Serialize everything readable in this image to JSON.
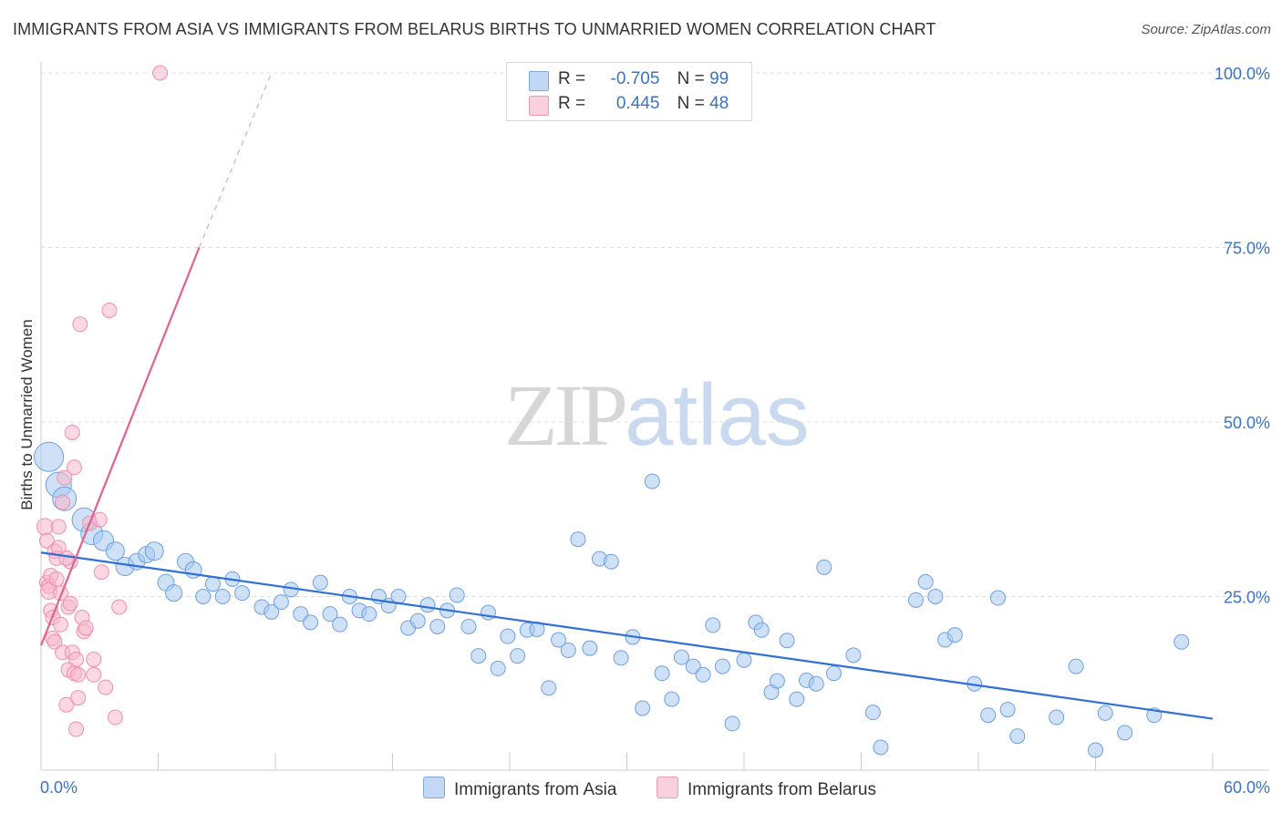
{
  "header": {
    "title": "IMMIGRANTS FROM ASIA VS IMMIGRANTS FROM BELARUS BIRTHS TO UNMARRIED WOMEN CORRELATION CHART",
    "source": "Source: ZipAtlas.com"
  },
  "watermark": {
    "zip": "ZIP",
    "atlas": "atlas"
  },
  "legend": {
    "rows": [
      {
        "r_label": "R =",
        "r_value": "-0.705",
        "n_label": "N =",
        "n_value": "99",
        "color": "#a8c8f0"
      },
      {
        "r_label": "R =",
        "r_value": "0.445",
        "n_label": "N =",
        "n_value": "48",
        "color": "#f7b8cb"
      }
    ]
  },
  "bottom_legend": [
    {
      "label": "Immigrants from Asia",
      "color": "#a8c8f0"
    },
    {
      "label": "Immigrants from Belarus",
      "color": "#f7b8cb"
    }
  ],
  "chart_data": {
    "type": "scatter",
    "title": "IMMIGRANTS FROM ASIA VS IMMIGRANTS FROM BELARUS BIRTHS TO UNMARRIED WOMEN CORRELATION CHART",
    "xlabel": "",
    "ylabel": "Births to Unmarried Women",
    "xlim": [
      0,
      60
    ],
    "ylim": [
      0,
      100
    ],
    "x_tick_labels": [
      "0.0%",
      "60.0%"
    ],
    "y_tick_labels": [
      "25.0%",
      "50.0%",
      "75.0%",
      "100.0%"
    ],
    "y_ticks": [
      25,
      50,
      75,
      100
    ],
    "grid": true,
    "legend_position": "top-center",
    "series": [
      {
        "name": "Immigrants from Asia",
        "color": "#6fa0e0",
        "fill": "#a8c8f0",
        "trend": {
          "x": [
            0,
            60
          ],
          "y": [
            31.3,
            7.5
          ]
        },
        "points": [
          [
            0.4,
            45.0,
            16
          ],
          [
            0.9,
            41.0,
            14
          ],
          [
            1.2,
            39.0,
            13
          ],
          [
            2.2,
            36.0,
            13
          ],
          [
            2.6,
            34.0,
            12
          ],
          [
            3.2,
            33.0,
            11
          ],
          [
            3.8,
            31.5,
            10
          ],
          [
            4.3,
            29.3,
            10
          ],
          [
            4.9,
            30.0,
            9
          ],
          [
            5.4,
            31.0,
            9
          ],
          [
            5.8,
            31.5,
            10
          ],
          [
            6.4,
            27.0,
            9
          ],
          [
            6.8,
            25.5,
            9
          ],
          [
            7.4,
            30.0,
            9
          ],
          [
            7.8,
            28.8,
            9
          ],
          [
            8.3,
            25.0,
            8
          ],
          [
            8.8,
            26.8,
            8
          ],
          [
            9.3,
            25.0,
            8
          ],
          [
            9.8,
            27.5,
            8
          ],
          [
            10.3,
            25.5,
            8
          ],
          [
            11.3,
            23.5,
            8
          ],
          [
            11.8,
            22.8,
            8
          ],
          [
            12.3,
            24.2,
            8
          ],
          [
            12.8,
            26.0,
            8
          ],
          [
            13.3,
            22.5,
            8
          ],
          [
            13.8,
            21.3,
            8
          ],
          [
            14.3,
            27.0,
            8
          ],
          [
            14.8,
            22.5,
            8
          ],
          [
            15.3,
            21.0,
            8
          ],
          [
            15.8,
            25.0,
            8
          ],
          [
            16.3,
            23.0,
            8
          ],
          [
            16.8,
            22.5,
            8
          ],
          [
            17.3,
            25.0,
            8
          ],
          [
            17.8,
            23.7,
            8
          ],
          [
            18.3,
            25.0,
            8
          ],
          [
            18.8,
            20.5,
            8
          ],
          [
            19.3,
            21.5,
            8
          ],
          [
            19.8,
            23.8,
            8
          ],
          [
            20.3,
            20.7,
            8
          ],
          [
            20.8,
            23.0,
            8
          ],
          [
            21.3,
            25.2,
            8
          ],
          [
            21.9,
            20.7,
            8
          ],
          [
            22.4,
            16.5,
            8
          ],
          [
            22.9,
            22.7,
            8
          ],
          [
            23.4,
            14.7,
            8
          ],
          [
            23.9,
            19.3,
            8
          ],
          [
            24.4,
            16.5,
            8
          ],
          [
            24.9,
            20.2,
            8
          ],
          [
            25.4,
            20.3,
            8
          ],
          [
            26.0,
            11.9,
            8
          ],
          [
            26.5,
            18.8,
            8
          ],
          [
            27.0,
            17.3,
            8
          ],
          [
            27.5,
            33.2,
            8
          ],
          [
            28.1,
            17.6,
            8
          ],
          [
            28.6,
            30.4,
            8
          ],
          [
            29.2,
            30.0,
            8
          ],
          [
            29.7,
            16.2,
            8
          ],
          [
            30.3,
            19.2,
            8
          ],
          [
            30.8,
            9.0,
            8
          ],
          [
            31.3,
            41.5,
            8
          ],
          [
            31.8,
            14.0,
            8
          ],
          [
            32.3,
            10.3,
            8
          ],
          [
            32.8,
            16.3,
            8
          ],
          [
            33.4,
            15.0,
            8
          ],
          [
            33.9,
            13.8,
            8
          ],
          [
            34.4,
            20.9,
            8
          ],
          [
            34.9,
            15.0,
            8
          ],
          [
            35.4,
            6.8,
            8
          ],
          [
            36.0,
            15.9,
            8
          ],
          [
            36.6,
            21.3,
            8
          ],
          [
            36.9,
            20.2,
            8
          ],
          [
            37.4,
            11.3,
            8
          ],
          [
            37.7,
            12.9,
            8
          ],
          [
            38.2,
            18.7,
            8
          ],
          [
            38.7,
            10.3,
            8
          ],
          [
            39.2,
            13.0,
            8
          ],
          [
            39.7,
            12.5,
            8
          ],
          [
            40.1,
            29.2,
            8
          ],
          [
            40.6,
            14.0,
            8
          ],
          [
            41.6,
            16.6,
            8
          ],
          [
            42.6,
            8.4,
            8
          ],
          [
            43.0,
            3.4,
            8
          ],
          [
            44.8,
            24.5,
            8
          ],
          [
            45.3,
            27.1,
            8
          ],
          [
            45.8,
            25.0,
            8
          ],
          [
            46.3,
            18.8,
            8
          ],
          [
            46.8,
            19.5,
            8
          ],
          [
            47.8,
            12.5,
            8
          ],
          [
            48.5,
            8.0,
            8
          ],
          [
            49.0,
            24.8,
            8
          ],
          [
            49.5,
            8.8,
            8
          ],
          [
            50.0,
            5.0,
            8
          ],
          [
            52.0,
            7.7,
            8
          ],
          [
            53.0,
            15.0,
            8
          ],
          [
            54.0,
            3.0,
            8
          ],
          [
            54.5,
            8.3,
            8
          ],
          [
            55.5,
            5.5,
            8
          ],
          [
            57.0,
            8.0,
            8
          ],
          [
            58.4,
            18.5,
            8
          ]
        ]
      },
      {
        "name": "Immigrants from Belarus",
        "color": "#ef8fae",
        "fill": "#f7b8cb",
        "trend": {
          "x": [
            0,
            8.1
          ],
          "y": [
            18.0,
            75.0
          ],
          "dashed_x": [
            8.1,
            11.8
          ],
          "dashed_y": [
            75.0,
            100.0
          ]
        },
        "points": [
          [
            0.2,
            35.0,
            9
          ],
          [
            0.3,
            33.0,
            8
          ],
          [
            0.3,
            27.0,
            8
          ],
          [
            0.4,
            26.5,
            8
          ],
          [
            0.4,
            25.8,
            9
          ],
          [
            0.5,
            28.0,
            8
          ],
          [
            0.5,
            23.0,
            8
          ],
          [
            0.6,
            22.0,
            8
          ],
          [
            0.6,
            19.0,
            8
          ],
          [
            0.7,
            31.5,
            8
          ],
          [
            0.7,
            18.5,
            8
          ],
          [
            0.8,
            27.5,
            8
          ],
          [
            0.8,
            30.5,
            8
          ],
          [
            0.9,
            35.0,
            8
          ],
          [
            0.9,
            32.0,
            8
          ],
          [
            1.0,
            25.5,
            8
          ],
          [
            1.0,
            21.0,
            8
          ],
          [
            1.1,
            17.0,
            8
          ],
          [
            1.1,
            38.5,
            8
          ],
          [
            1.2,
            42.0,
            8
          ],
          [
            1.3,
            9.5,
            8
          ],
          [
            1.4,
            23.5,
            8
          ],
          [
            1.4,
            14.5,
            8
          ],
          [
            1.5,
            30.0,
            8
          ],
          [
            1.5,
            24.0,
            8
          ],
          [
            1.6,
            17.0,
            8
          ],
          [
            1.6,
            48.5,
            8
          ],
          [
            1.7,
            43.5,
            8
          ],
          [
            1.7,
            14.0,
            8
          ],
          [
            1.8,
            16.0,
            8
          ],
          [
            1.8,
            6.0,
            8
          ],
          [
            1.9,
            10.5,
            8
          ],
          [
            1.9,
            13.8,
            8
          ],
          [
            2.0,
            64.0,
            8
          ],
          [
            2.1,
            22.0,
            8
          ],
          [
            2.2,
            20.0,
            8
          ],
          [
            2.3,
            20.5,
            8
          ],
          [
            2.5,
            35.5,
            8
          ],
          [
            2.7,
            16.0,
            8
          ],
          [
            2.7,
            13.8,
            8
          ],
          [
            3.0,
            36.0,
            8
          ],
          [
            3.1,
            28.5,
            8
          ],
          [
            3.3,
            12.0,
            8
          ],
          [
            3.5,
            66.0,
            8
          ],
          [
            3.8,
            7.7,
            8
          ],
          [
            4.0,
            23.5,
            8
          ],
          [
            6.1,
            100.0,
            8
          ],
          [
            1.3,
            30.5,
            8
          ]
        ]
      }
    ]
  }
}
